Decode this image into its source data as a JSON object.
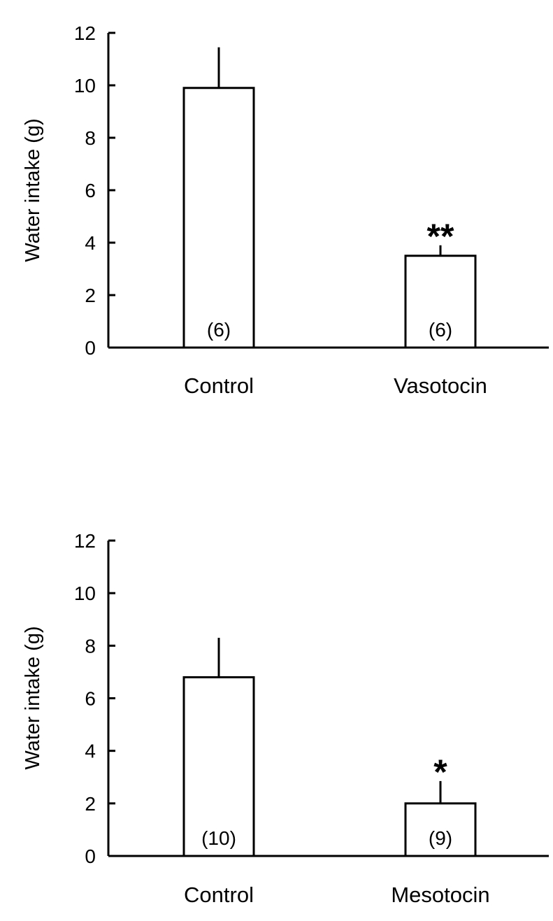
{
  "chart_data": [
    {
      "type": "bar",
      "title": "",
      "xlabel": "",
      "ylabel": "Water intake (g)",
      "ylim": [
        0,
        12
      ],
      "yticks": [
        0,
        2,
        4,
        6,
        8,
        10,
        12
      ],
      "ytick_labels": [
        "0",
        "2",
        "4",
        "6",
        "8",
        "10",
        "12"
      ],
      "categories": [
        "Control",
        "Vasotocin"
      ],
      "values": [
        9.9,
        3.5
      ],
      "errors": [
        1.55,
        0.4
      ],
      "n_labels": [
        "(6)",
        "(6)"
      ],
      "significance": [
        "",
        "**"
      ],
      "grid": false,
      "bar_fill": "#ffffff",
      "bar_stroke": "#000000"
    },
    {
      "type": "bar",
      "title": "",
      "xlabel": "",
      "ylabel": "Water intake (g)",
      "ylim": [
        0,
        12
      ],
      "yticks": [
        0,
        2,
        4,
        6,
        8,
        10,
        12
      ],
      "ytick_labels": [
        "0",
        "2",
        "4",
        "6",
        "8",
        "10",
        "12"
      ],
      "categories": [
        "Control",
        "Mesotocin"
      ],
      "values": [
        6.8,
        2.0
      ],
      "errors": [
        1.5,
        0.85
      ],
      "n_labels": [
        "(10)",
        "(9)"
      ],
      "significance": [
        "",
        "*"
      ],
      "grid": false,
      "bar_fill": "#ffffff",
      "bar_stroke": "#000000"
    }
  ]
}
